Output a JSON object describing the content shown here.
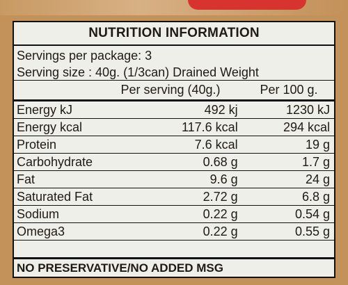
{
  "title": "NUTRITION INFORMATION",
  "servings": "Servings per package: 3",
  "serving_size": "Serving size : 40g. (1/3can) Drained Weight",
  "columns": {
    "per_serving": "Per serving (40g.)",
    "per_100": "Per 100 g."
  },
  "rows": [
    {
      "label": "Energy kJ",
      "per_serving": "492 kj",
      "per_100": "1230 kJ"
    },
    {
      "label": "Energy kcal",
      "per_serving": "117.6 kcal",
      "per_100": "294 kcal"
    },
    {
      "label": "Protein",
      "per_serving": "7.6 kcal",
      "per_100": "19 g"
    },
    {
      "label": "Carbohydrate",
      "per_serving": "0.68 g",
      "per_100": "1.7 g"
    },
    {
      "label": "Fat",
      "per_serving": "9.6 g",
      "per_100": "24 g"
    },
    {
      "label": "Saturated Fat",
      "per_serving": "2.72 g",
      "per_100": "6.8 g"
    },
    {
      "label": "Sodium",
      "per_serving": "0.22 g",
      "per_100": "0.54 g"
    },
    {
      "label": "Omega3",
      "per_serving": "0.22 g",
      "per_100": "0.55 g"
    }
  ],
  "footer": "NO PRESERVATIVE/NO ADDED MSG",
  "colors": {
    "panel": "#efefea",
    "package": "#c3915a",
    "accent_red": "#d8342f"
  }
}
